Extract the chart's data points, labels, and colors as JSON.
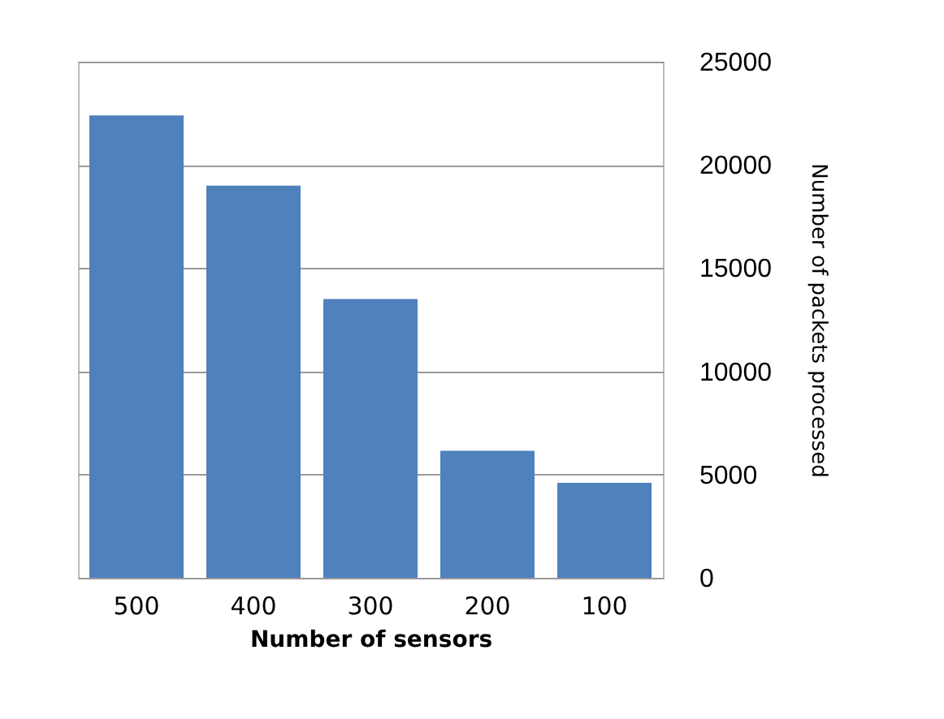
{
  "chart_data": {
    "type": "bar",
    "xlabel": "Number of sensors",
    "ylabel": "Number of packets processed",
    "categories": [
      "500",
      "400",
      "300",
      "200",
      "100"
    ],
    "values": [
      22400,
      19000,
      13500,
      6150,
      4600
    ],
    "color": "#4f81bd",
    "ylim": [
      0,
      25000
    ],
    "yticks": [
      0,
      5000,
      10000,
      15000,
      20000,
      25000
    ],
    "grid": "y"
  }
}
